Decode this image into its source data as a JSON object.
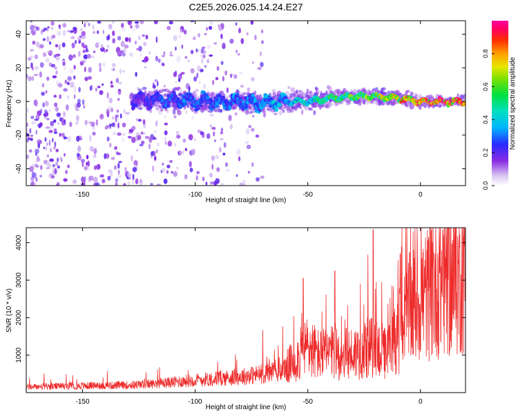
{
  "title": "C2E5.2026.025.14.24.E27",
  "colors": {
    "snr_line": "#ee2a2a",
    "axis": "#000000",
    "background": "#ffffff"
  },
  "chart_data": [
    {
      "type": "heatmap",
      "title": "C2E5.2026.025.14.24.E27",
      "xlabel": "Height of straight line (km)",
      "ylabel": "Frequency (Hz)",
      "xlim": [
        -175,
        20
      ],
      "ylim": [
        -50,
        48
      ],
      "xticks": [
        -150,
        -100,
        -50,
        0
      ],
      "yticks": [
        -40,
        -20,
        0,
        20,
        40
      ],
      "grid": false,
      "colormap": "rainbow (white→purple→blue→cyan→green→yellow→orange→red→magenta)",
      "colorbar": {
        "label": "Normalized spectral amplitude",
        "range": [
          0.0,
          1.0
        ],
        "ticks": [
          "0.0",
          "0.2",
          "0.4",
          "0.6",
          "0.8"
        ]
      },
      "ridge": {
        "description": "energy concentrated near 0 Hz, strengthening with height",
        "x": [
          -125,
          -110,
          -100,
          -90,
          -80,
          -70,
          -60,
          -50,
          -40,
          -30,
          -20,
          -10,
          0,
          10,
          20
        ],
        "frequency": [
          1,
          1,
          0,
          0,
          0,
          -1,
          0,
          0,
          2,
          3,
          3,
          2,
          0,
          0,
          0
        ],
        "amplitude": [
          0.22,
          0.3,
          0.3,
          0.3,
          0.32,
          0.35,
          0.4,
          0.48,
          0.55,
          0.6,
          0.68,
          0.78,
          0.9,
          0.95,
          0.95
        ]
      },
      "noise_extent_km": [
        -175,
        -70
      ]
    },
    {
      "type": "line",
      "xlabel": "Height of straight line (km)",
      "ylabel": "SNR (10 * v/v)",
      "xlim": [
        -175,
        20
      ],
      "ylim": [
        0,
        4400
      ],
      "xticks": [
        -150,
        -100,
        -50,
        0
      ],
      "yticks": [
        1000,
        2000,
        3000,
        4000
      ],
      "grid": false,
      "series": [
        {
          "color": "#ee2a2a",
          "description": "noisy SNR trace, low (~150) at -175 km rising to ~3000-4000 near 0-20 km",
          "x": [
            -175,
            -160,
            -150,
            -140,
            -130,
            -120,
            -110,
            -100,
            -90,
            -80,
            -70,
            -60,
            -55,
            -50,
            -45,
            -40,
            -35,
            -30,
            -25,
            -20,
            -15,
            -10,
            -5,
            0,
            5,
            10,
            15,
            20
          ],
          "y": [
            150,
            170,
            180,
            190,
            200,
            230,
            280,
            330,
            380,
            420,
            500,
            650,
            900,
            1250,
            1000,
            1050,
            1000,
            1050,
            1150,
            1250,
            1000,
            1600,
            2200,
            2500,
            2700,
            3000,
            2900,
            3300
          ],
          "peaks": [
            {
              "x": -52,
              "y": 3050
            },
            {
              "x": -38,
              "y": 3250
            },
            {
              "x": -21,
              "y": 4350
            },
            {
              "x": -9,
              "y": 3700
            },
            {
              "x": 10,
              "y": 4350
            },
            {
              "x": 19,
              "y": 4150
            }
          ]
        }
      ]
    }
  ]
}
